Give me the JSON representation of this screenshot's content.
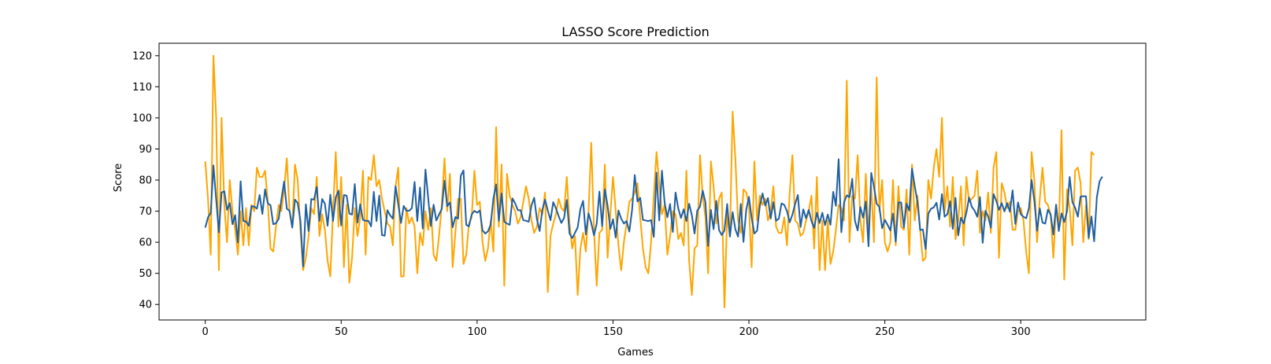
{
  "chart_data": {
    "type": "line",
    "title": "LASSO Score Prediction",
    "xlabel": "Games",
    "ylabel": "Score",
    "xlim": [
      -17,
      346
    ],
    "ylim": [
      35,
      124
    ],
    "xticks": [
      0,
      50,
      100,
      150,
      200,
      250,
      300
    ],
    "yticks": [
      40,
      50,
      60,
      70,
      80,
      90,
      100,
      110,
      120
    ],
    "grid": false,
    "legend": null,
    "series": [
      {
        "color": "#ffa500",
        "values": [
          86,
          74,
          56,
          120,
          100,
          51,
          100,
          72,
          60,
          80,
          70,
          64,
          56,
          70,
          59,
          71,
          59,
          72,
          70,
          84,
          81,
          81,
          83,
          73,
          58,
          57,
          65,
          72,
          70,
          77,
          87,
          70,
          65,
          85,
          80,
          64,
          51,
          55,
          62,
          71,
          69,
          81,
          62,
          69,
          64,
          54,
          49,
          70,
          89,
          65,
          81,
          52,
          72,
          47,
          55,
          71,
          62,
          68,
          83,
          56,
          81,
          80,
          88,
          78,
          80,
          74,
          70,
          66,
          65,
          59,
          78,
          84,
          49,
          49,
          71,
          66,
          68,
          65,
          50,
          63,
          59,
          70,
          64,
          71,
          56,
          54,
          62,
          72,
          87,
          70,
          82,
          52,
          63,
          74,
          74,
          53,
          56,
          66,
          68,
          83,
          72,
          73,
          60,
          54,
          58,
          67,
          57,
          97,
          65,
          85,
          46,
          82,
          75,
          72,
          70,
          66,
          68,
          73,
          78,
          74,
          67,
          63,
          65,
          71,
          69,
          76,
          44,
          62,
          66,
          69,
          74,
          71,
          70,
          81,
          66,
          58,
          62,
          43,
          58,
          63,
          57,
          70,
          92,
          64,
          46,
          63,
          64,
          85,
          55,
          69,
          81,
          70,
          59,
          51,
          60,
          66,
          73,
          74,
          76,
          79,
          68,
          58,
          52,
          50,
          60,
          75,
          89,
          79,
          69,
          72,
          56,
          62,
          70,
          69,
          61,
          63,
          59,
          83,
          54,
          43,
          58,
          59,
          88,
          75,
          68,
          50,
          86,
          78,
          66,
          74,
          76,
          39,
          69,
          62,
          102,
          87,
          67,
          63,
          77,
          76,
          72,
          52,
          86,
          67,
          75,
          72,
          74,
          67,
          70,
          78,
          65,
          63,
          63,
          68,
          59,
          76,
          88,
          67,
          66,
          62,
          63,
          67,
          70,
          75,
          58,
          81,
          51,
          67,
          51,
          67,
          53,
          57,
          64,
          72,
          71,
          67,
          112,
          60,
          75,
          74,
          88,
          67,
          60,
          82,
          62,
          78,
          60,
          113,
          70,
          80,
          60,
          57,
          60,
          80,
          59,
          78,
          65,
          64,
          77,
          56,
          85,
          67,
          75,
          64,
          54,
          55,
          80,
          74,
          84,
          90,
          81,
          100,
          70,
          78,
          65,
          81,
          61,
          67,
          78,
          59,
          81,
          73,
          74,
          75,
          83,
          63,
          70,
          67,
          76,
          63,
          84,
          89,
          55,
          79,
          76,
          71,
          73,
          64,
          64,
          70,
          71,
          67,
          57,
          50,
          89,
          80,
          60,
          74,
          84,
          73,
          72,
          69,
          55,
          72,
          64,
          96,
          48,
          77,
          71,
          59,
          83,
          84,
          79,
          60,
          72,
          61,
          89,
          88
        ]
      },
      {
        "color": "#1f5fa0",
        "values": [
          64.7,
          68,
          69.4,
          84.7,
          73.8,
          63.2,
          76,
          76.4,
          70.4,
          72.6,
          65.8,
          68.7,
          59.9,
          79.6,
          66.8,
          66.7,
          65.3,
          71.6,
          71.5,
          70.8,
          75.2,
          69.1,
          77,
          72.5,
          71.9,
          65.8,
          66.1,
          67.5,
          73.8,
          79.5,
          70.8,
          70.1,
          64.7,
          73.7,
          72.6,
          66.9,
          52.2,
          72.2,
          63.6,
          73.9,
          73.7,
          77.8,
          66.8,
          73.9,
          72.4,
          65.3,
          75.3,
          66.8,
          74.5,
          76.6,
          65.4,
          75.2,
          75,
          69.2,
          68.9,
          78.7,
          66.3,
          72.2,
          67.2,
          66.9,
          66.9,
          65.1,
          76.2,
          66.8,
          75,
          62.3,
          62.1,
          70.3,
          68.7,
          67.6,
          78,
          72.2,
          66.2,
          71.7,
          70.1,
          70.1,
          71,
          79.4,
          66.8,
          77.6,
          64.4,
          83.4,
          74.3,
          65.2,
          72.1,
          67,
          68.9,
          70.7,
          79.8,
          71.6,
          72.8,
          64.8,
          68.1,
          67.6,
          81.4,
          83.1,
          65.6,
          65.1,
          68.9,
          70.1,
          69.5,
          70.2,
          63.8,
          62.8,
          63.5,
          65.7,
          74.1,
          78.6,
          66.9,
          75.7,
          66.6,
          66,
          65.6,
          74.1,
          72.5,
          70.3,
          70.3,
          67.1,
          66.9,
          66.6,
          71.9,
          74.3,
          67.4,
          63.6,
          70.4,
          73.7,
          70.2,
          67.1,
          72.9,
          70.9,
          68.4,
          66.2,
          67.8,
          73.6,
          62.8,
          61.3,
          63,
          64.8,
          70.7,
          73.3,
          62.5,
          69.3,
          66.2,
          62.2,
          66,
          76.3,
          65.2,
          77,
          71.8,
          64.3,
          67.4,
          61.5,
          70.2,
          67.6,
          66,
          66.8,
          63.4,
          70.3,
          81.6,
          73.1,
          74.3,
          67.2,
          67,
          66.8,
          67.1,
          61.7,
          82.4,
          67,
          83,
          72.6,
          68,
          72.3,
          63.3,
          76,
          70.9,
          67.8,
          70.6,
          66.8,
          72.4,
          68.7,
          62.8,
          70.2,
          71.5,
          76.6,
          72.8,
          58.8,
          70.4,
          64.2,
          73.3,
          63.9,
          62.3,
          63.8,
          72.3,
          61.8,
          69.7,
          64.2,
          61.8,
          72.3,
          60.1,
          70.4,
          74.6,
          67.8,
          62.8,
          63.7,
          71.6,
          75.7,
          71.8,
          74.2,
          67.6,
          72.9,
          66.9,
          67.6,
          72.5,
          72,
          70,
          66.4,
          68.9,
          72.3,
          75.2,
          64.9,
          70.6,
          67.7,
          70.4,
          66.8,
          64.6,
          69.5,
          66.2,
          69.5,
          65.5,
          68.9,
          65.6,
          76.2,
          71.7,
          86.7,
          63.2,
          72.8,
          75.1,
          74.5,
          80.4,
          66.9,
          63.8,
          71.3,
          67.9,
          73.1,
          58.7,
          82.3,
          77.8,
          72.4,
          71.3,
          64.5,
          67.2,
          65.6,
          63.8,
          69.2,
          60.2,
          72.8,
          72.8,
          64.8,
          72.4,
          70.2,
          83.7,
          78,
          73,
          63.9,
          64.1,
          57.8,
          69.2,
          70.8,
          71.2,
          72.7,
          67.3,
          75.5,
          68.2,
          69,
          73.2,
          64.3,
          74.3,
          62.2,
          67.9,
          66,
          69.5,
          74.4,
          71.4,
          70.2,
          68.2,
          74.5,
          59.8,
          70.1,
          68.3,
          64.7,
          75.5,
          73.3,
          70.4,
          72.6,
          69.9,
          72.6,
          69.8,
          76.7,
          65.9,
          72.8,
          69,
          68.2,
          67.7,
          70.9,
          80,
          73.3,
          63.7,
          70.9,
          66.3,
          66,
          70.5,
          68.9,
          62.5,
          72.1,
          63.6,
          69.3,
          66.5,
          69.9,
          81,
          72.9,
          71.1,
          68.2,
          74.7,
          74.8,
          74.8,
          61.4,
          68.3,
          60.3,
          74.5,
          79.6,
          81.1
        ]
      }
    ]
  }
}
